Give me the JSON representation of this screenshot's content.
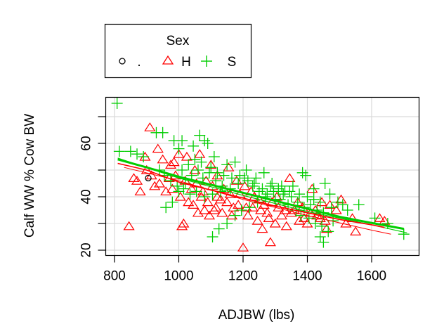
{
  "chart_data": {
    "type": "scatter",
    "title": "",
    "xlabel": "ADJBW (lbs)",
    "ylabel": "Calf WW % Cow BW",
    "xlim": [
      790,
      1720
    ],
    "ylim": [
      18,
      76
    ],
    "x_ticks": [
      800,
      1000,
      1200,
      1400,
      1600
    ],
    "y_ticks": [
      20,
      30,
      40,
      50,
      60,
      70
    ],
    "y_tick_labels": [
      "20",
      "",
      "40",
      "",
      "60",
      ""
    ],
    "grid": true,
    "legend": {
      "title": "Sex",
      "position": "top-left-outside",
      "entries": [
        {
          "label": ".",
          "marker": "circle",
          "color": "#000000"
        },
        {
          "label": "H",
          "marker": "triangle",
          "color": "#ff0000"
        },
        {
          "label": "S",
          "marker": "plus",
          "color": "#00cd00"
        }
      ]
    },
    "series": [
      {
        "name": ".",
        "marker": "circle",
        "color": "#000000",
        "points": [
          [
            905,
            47
          ]
        ]
      },
      {
        "name": "H",
        "marker": "triangle",
        "color": "#ff0000",
        "points": [
          [
            910,
            66
          ],
          [
            935,
            58
          ],
          [
            950,
            54
          ],
          [
            975,
            52
          ],
          [
            985,
            53
          ],
          [
            1000,
            56
          ],
          [
            1025,
            55
          ],
          [
            1050,
            50
          ],
          [
            1065,
            56
          ],
          [
            1100,
            52
          ],
          [
            845,
            29
          ],
          [
            860,
            47
          ],
          [
            870,
            46
          ],
          [
            880,
            42
          ],
          [
            895,
            55
          ],
          [
            900,
            50
          ],
          [
            915,
            48
          ],
          [
            925,
            44
          ],
          [
            940,
            45
          ],
          [
            960,
            42
          ],
          [
            980,
            43
          ],
          [
            1005,
            40
          ],
          [
            1010,
            29
          ],
          [
            1015,
            30
          ],
          [
            1030,
            38
          ],
          [
            1045,
            37
          ],
          [
            1060,
            34
          ],
          [
            1080,
            35
          ],
          [
            1095,
            33
          ],
          [
            1110,
            35
          ],
          [
            1120,
            40
          ],
          [
            1140,
            43
          ],
          [
            1150,
            38
          ],
          [
            1170,
            36
          ],
          [
            1190,
            41
          ],
          [
            1200,
            21
          ],
          [
            1215,
            33
          ],
          [
            1230,
            36
          ],
          [
            1245,
            31
          ],
          [
            1260,
            28
          ],
          [
            1275,
            34
          ],
          [
            1285,
            23
          ],
          [
            1300,
            30
          ],
          [
            1310,
            36
          ],
          [
            1320,
            33
          ],
          [
            1335,
            29
          ],
          [
            1345,
            47
          ],
          [
            1360,
            35
          ],
          [
            1375,
            31
          ],
          [
            1390,
            32
          ],
          [
            1400,
            30
          ],
          [
            1415,
            43
          ],
          [
            1430,
            33
          ],
          [
            1445,
            38
          ],
          [
            1460,
            28
          ],
          [
            1470,
            37
          ],
          [
            1490,
            35
          ],
          [
            1505,
            39
          ],
          [
            1520,
            30
          ],
          [
            1540,
            32
          ],
          [
            1550,
            27
          ],
          [
            1625,
            32
          ],
          [
            1640,
            31
          ],
          [
            1120,
            48
          ],
          [
            1155,
            51
          ],
          [
            1180,
            46
          ],
          [
            1205,
            44
          ],
          [
            1225,
            42
          ],
          [
            1250,
            39
          ],
          [
            1265,
            37
          ],
          [
            1290,
            38
          ],
          [
            1305,
            40
          ],
          [
            1330,
            35
          ],
          [
            1350,
            34
          ],
          [
            1370,
            38
          ],
          [
            1385,
            36
          ],
          [
            1410,
            34
          ],
          [
            1425,
            35
          ],
          [
            1440,
            32
          ],
          [
            1455,
            31
          ],
          [
            1075,
            42
          ],
          [
            1085,
            46
          ],
          [
            1105,
            44
          ],
          [
            1130,
            39
          ],
          [
            1160,
            41
          ],
          [
            1185,
            37
          ],
          [
            1210,
            36
          ],
          [
            1235,
            40
          ],
          [
            1255,
            35
          ],
          [
            1280,
            32
          ],
          [
            970,
            47
          ],
          [
            990,
            48
          ],
          [
            1020,
            46
          ],
          [
            1040,
            43
          ],
          [
            1055,
            45
          ],
          [
            1070,
            40
          ],
          [
            1090,
            38
          ],
          [
            1115,
            36
          ],
          [
            1135,
            34
          ],
          [
            1165,
            33
          ]
        ]
      },
      {
        "name": "S",
        "marker": "plus",
        "color": "#00cd00",
        "points": [
          [
            808,
            75
          ],
          [
            815,
            57
          ],
          [
            850,
            57
          ],
          [
            870,
            56
          ],
          [
            890,
            55
          ],
          [
            930,
            64
          ],
          [
            950,
            64
          ],
          [
            985,
            61
          ],
          [
            1000,
            58
          ],
          [
            1010,
            61
          ],
          [
            1045,
            59
          ],
          [
            1065,
            63
          ],
          [
            1080,
            61
          ],
          [
            1090,
            60
          ],
          [
            1110,
            55
          ],
          [
            1150,
            52
          ],
          [
            1175,
            53
          ],
          [
            1210,
            50
          ],
          [
            1240,
            47
          ],
          [
            1265,
            49
          ],
          [
            1290,
            45
          ],
          [
            1320,
            44
          ],
          [
            1345,
            42
          ],
          [
            1385,
            49
          ],
          [
            1395,
            48
          ],
          [
            1420,
            43
          ],
          [
            1455,
            45
          ],
          [
            1470,
            41
          ],
          [
            1495,
            38
          ],
          [
            1510,
            37
          ],
          [
            1525,
            35
          ],
          [
            1560,
            37
          ],
          [
            1610,
            32
          ],
          [
            1650,
            30
          ],
          [
            1700,
            26
          ],
          [
            1450,
            23
          ],
          [
            1440,
            25
          ],
          [
            1465,
            27
          ],
          [
            1105,
            25
          ],
          [
            1125,
            28
          ],
          [
            1150,
            30
          ],
          [
            1175,
            33
          ],
          [
            1195,
            35
          ],
          [
            1220,
            36
          ],
          [
            1245,
            38
          ],
          [
            1270,
            40
          ],
          [
            1295,
            42
          ],
          [
            1315,
            39
          ],
          [
            1340,
            37
          ],
          [
            1365,
            35
          ],
          [
            1380,
            33
          ],
          [
            1405,
            32
          ],
          [
            1425,
            30
          ],
          [
            1445,
            29
          ],
          [
            1480,
            31
          ],
          [
            960,
            36
          ],
          [
            980,
            38
          ],
          [
            1000,
            42
          ],
          [
            1020,
            45
          ],
          [
            1040,
            48
          ],
          [
            1060,
            50
          ],
          [
            1075,
            47
          ],
          [
            1095,
            49
          ],
          [
            1115,
            46
          ],
          [
            1135,
            44
          ],
          [
            1160,
            43
          ],
          [
            1185,
            45
          ],
          [
            1205,
            47
          ],
          [
            1230,
            44
          ],
          [
            1250,
            42
          ],
          [
            1275,
            41
          ],
          [
            1300,
            39
          ],
          [
            1325,
            41
          ],
          [
            1350,
            40
          ],
          [
            1370,
            38
          ],
          [
            1390,
            36
          ],
          [
            1410,
            37
          ],
          [
            1430,
            35
          ],
          [
            1450,
            34
          ],
          [
            1475,
            36
          ],
          [
            1010,
            50
          ],
          [
            1030,
            52
          ],
          [
            1050,
            54
          ],
          [
            1070,
            53
          ],
          [
            1100,
            51
          ],
          [
            1120,
            49
          ],
          [
            1140,
            48
          ],
          [
            1165,
            47
          ],
          [
            1190,
            48
          ],
          [
            1215,
            46
          ],
          [
            1235,
            45
          ],
          [
            1260,
            43
          ],
          [
            1285,
            44
          ],
          [
            1310,
            43
          ],
          [
            1330,
            42
          ],
          [
            1355,
            44
          ],
          [
            1375,
            41
          ],
          [
            1400,
            40
          ],
          [
            1420,
            39
          ],
          [
            1440,
            38
          ],
          [
            940,
            50
          ],
          [
            955,
            48
          ],
          [
            975,
            46
          ],
          [
            995,
            44
          ],
          [
            1015,
            43
          ],
          [
            1035,
            41
          ],
          [
            1055,
            42
          ],
          [
            1080,
            40
          ],
          [
            1105,
            41
          ],
          [
            1130,
            42
          ]
        ]
      }
    ],
    "lines": [
      {
        "name": "S lowess",
        "color": "#00cd00",
        "width": 3,
        "points": [
          [
            810,
            54
          ],
          [
            900,
            51
          ],
          [
            1000,
            47.5
          ],
          [
            1100,
            44.5
          ],
          [
            1200,
            41.5
          ],
          [
            1300,
            38.5
          ],
          [
            1400,
            35.5
          ],
          [
            1500,
            32.5
          ],
          [
            1600,
            30.2
          ],
          [
            1700,
            28
          ]
        ]
      },
      {
        "name": "S fit",
        "color": "#00cd00",
        "width": 1.2,
        "points": [
          [
            810,
            54.5
          ],
          [
            1000,
            47
          ],
          [
            1200,
            40.5
          ],
          [
            1400,
            34.5
          ],
          [
            1600,
            29.5
          ],
          [
            1710,
            26.5
          ]
        ]
      },
      {
        "name": "H lowess",
        "color": "#ff0000",
        "width": 1.6,
        "points": [
          [
            810,
            52.5
          ],
          [
            900,
            50
          ],
          [
            1000,
            45.5
          ],
          [
            1100,
            42.5
          ],
          [
            1200,
            39.5
          ],
          [
            1300,
            36.5
          ],
          [
            1400,
            34
          ],
          [
            1500,
            31.5
          ],
          [
            1600,
            29.5
          ],
          [
            1640,
            28.5
          ]
        ]
      },
      {
        "name": "H fit",
        "color": "#ff0000",
        "width": 1,
        "points": [
          [
            830,
            51
          ],
          [
            1000,
            46
          ],
          [
            1200,
            39
          ],
          [
            1400,
            33
          ],
          [
            1600,
            27.5
          ],
          [
            1660,
            26
          ]
        ]
      }
    ]
  },
  "legend_ui": {
    "title": "Sex",
    "items": [
      {
        "symbol": "○",
        "label": "."
      },
      {
        "symbol": "△",
        "label": "H"
      },
      {
        "symbol": "+",
        "label": "S"
      }
    ]
  },
  "axes_ui": {
    "xlabel": "ADJBW (lbs)",
    "ylabel": "Calf WW % Cow BW"
  }
}
